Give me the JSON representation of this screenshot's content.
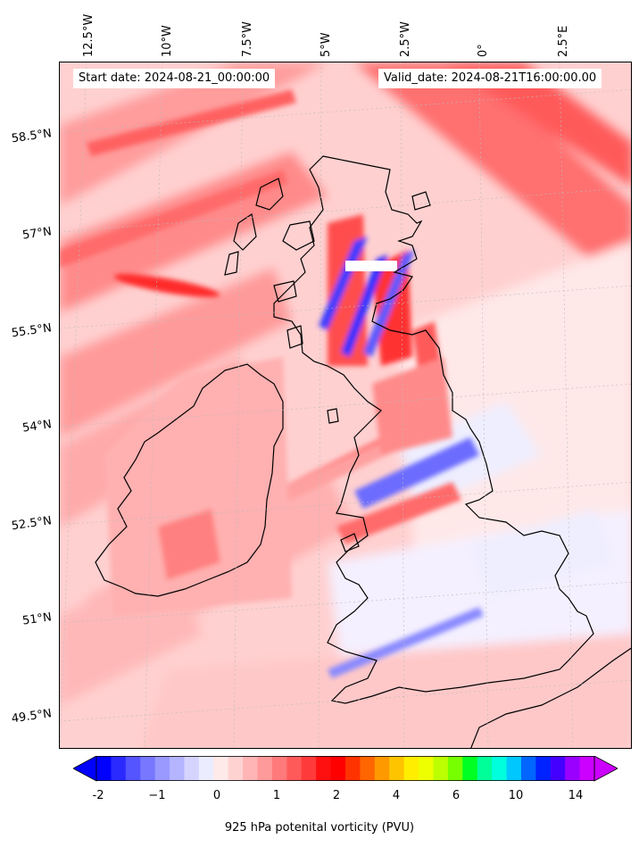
{
  "header": {
    "start_date": "Start date: 2024-08-21_00:00:00",
    "valid_date": "Valid_date: 2024-08-21T16:00:00.00"
  },
  "map": {
    "longitude_labels": [
      "12.5°W",
      "10°W",
      "7.5°W",
      "5°W",
      "2.5°W",
      "0°",
      "2.5°E"
    ],
    "latitude_labels": [
      "58.5°N",
      "57°N",
      "55.5°N",
      "54°N",
      "52.5°N",
      "51°N",
      "49.5°N"
    ]
  },
  "colorbar": {
    "label": "925 hPa potenital vorticity (PVU)",
    "ticks": [
      "-2",
      "−1",
      "0",
      "1",
      "2",
      "4",
      "6",
      "10",
      "14"
    ],
    "colors": [
      "#0000ff",
      "#2a2aff",
      "#5555ff",
      "#7777ff",
      "#9999ff",
      "#b5b5ff",
      "#d4d4ff",
      "#ececff",
      "#ffeaea",
      "#ffd2d2",
      "#ffb5b5",
      "#ff9a9a",
      "#ff7a7a",
      "#ff5a5a",
      "#ff3a3a",
      "#ff1010",
      "#ff0000",
      "#ff3300",
      "#ff6600",
      "#ff9900",
      "#ffc400",
      "#ffee00",
      "#eeff00",
      "#bbff00",
      "#77ff00",
      "#00ff22",
      "#00ff99",
      "#00ffdd",
      "#00c8ff",
      "#0066ff",
      "#0022ff",
      "#4400ff",
      "#9900ff",
      "#cc00ff"
    ]
  }
}
